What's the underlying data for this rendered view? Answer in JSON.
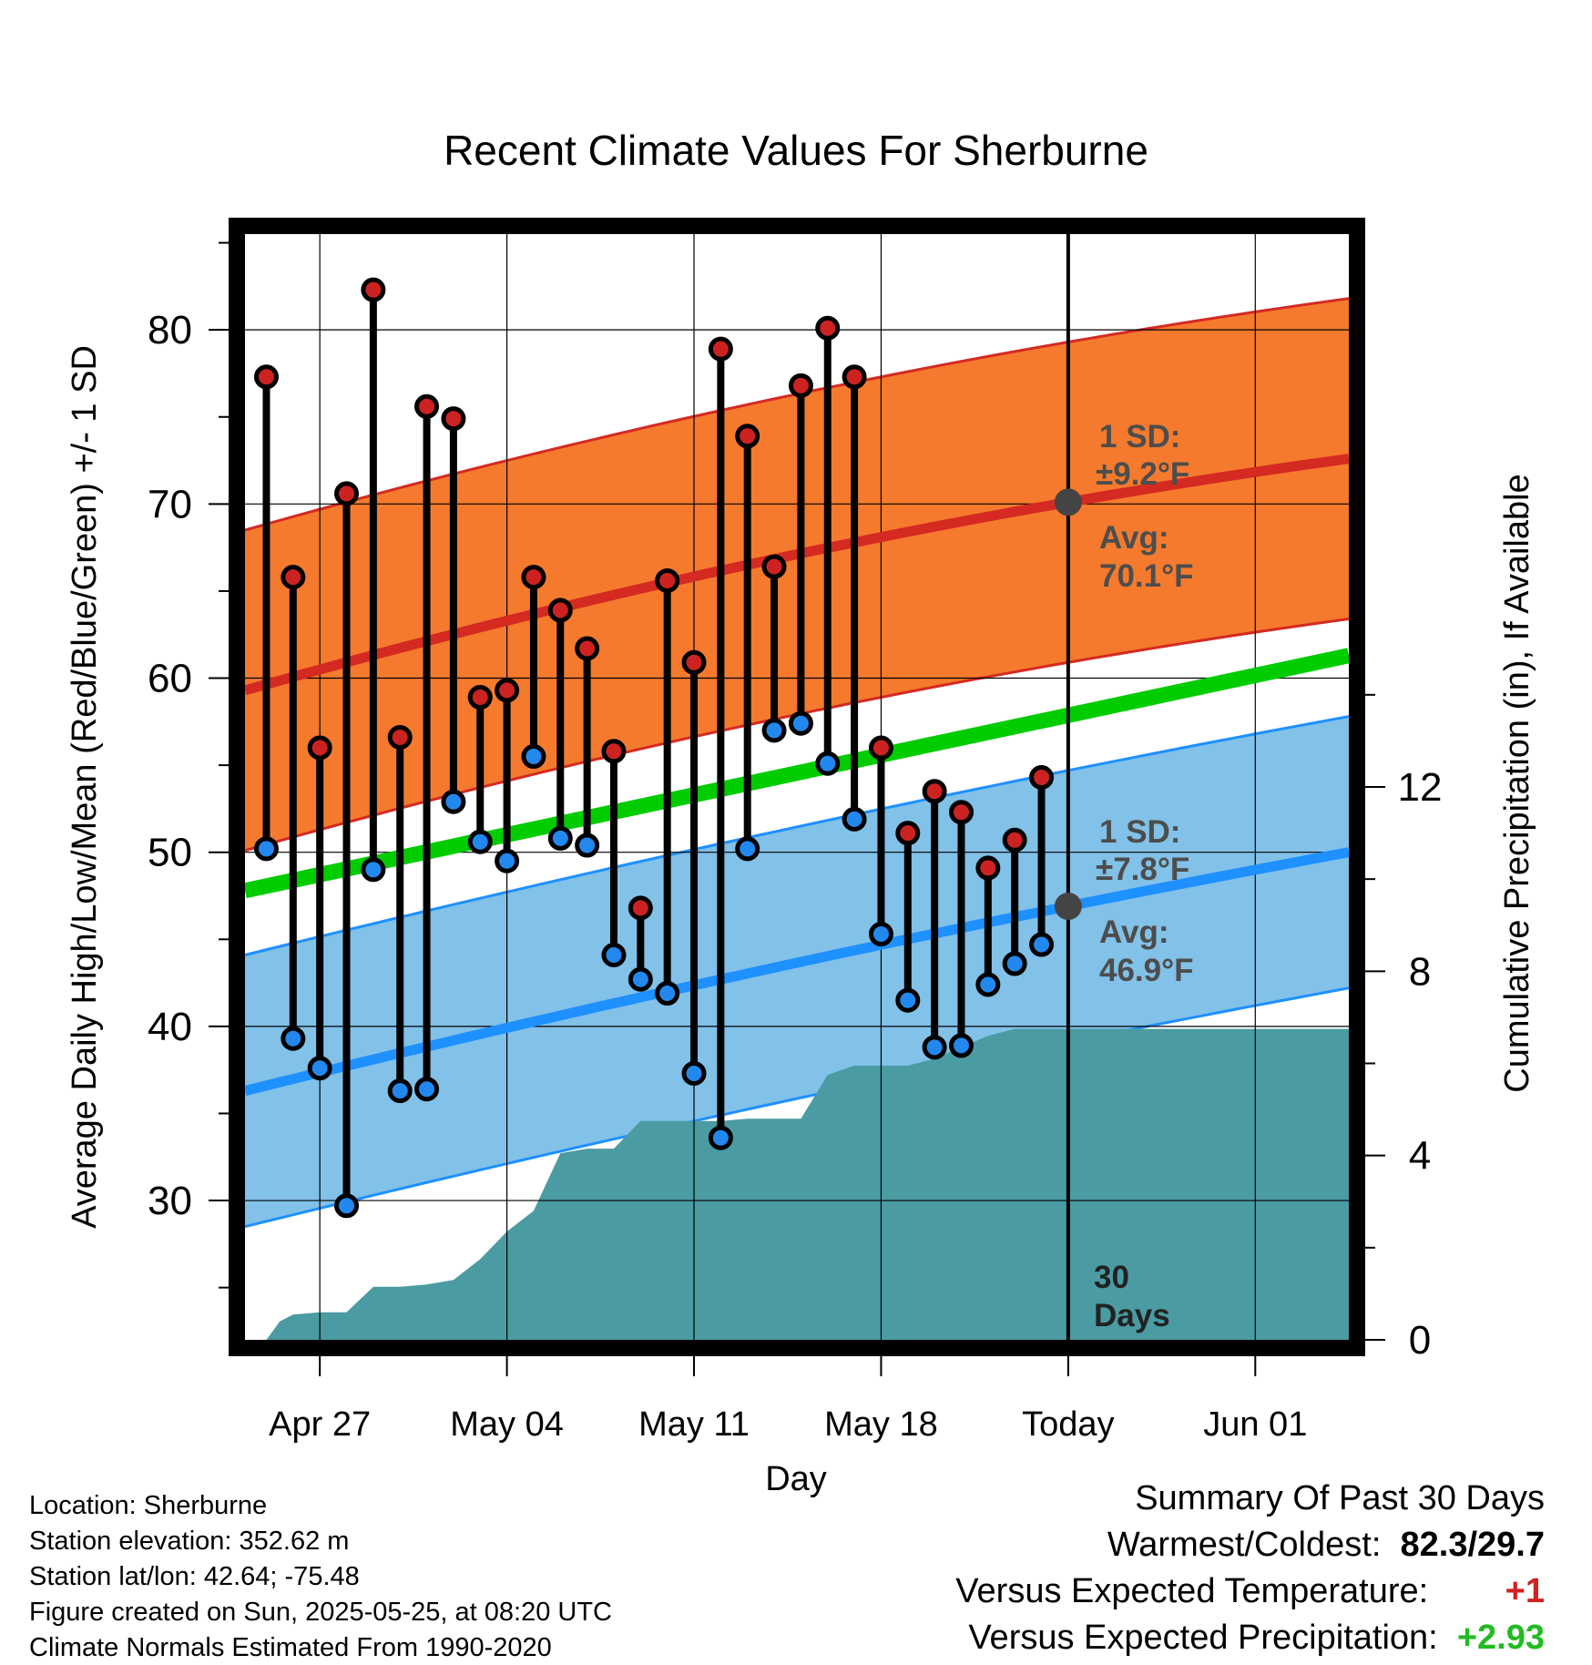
{
  "chart_data": {
    "type": "line",
    "title": "Recent Climate Values For Sherburne",
    "xlabel": "Day",
    "ylabel": "Average Daily High/Low/Mean (Red/Blue/Green) +/- 1 SD",
    "ylabel_right": "Cumulative Precipitation (in), If Available",
    "x_tick_labels": [
      "Apr 27",
      "May 04",
      "May 11",
      "May 18",
      "Today",
      "Jun 01"
    ],
    "x_tick_days": [
      3,
      10,
      17,
      24,
      31,
      38
    ],
    "x_range_days": [
      0.2,
      41.5
    ],
    "y_left_ticks": [
      30,
      40,
      50,
      60,
      70,
      80
    ],
    "y_left_range": [
      22,
      85.5
    ],
    "y_right_ticks": [
      0,
      4,
      8,
      12
    ],
    "y_right_range": [
      0,
      24
    ],
    "days": [
      1,
      2,
      3,
      4,
      5,
      6,
      7,
      8,
      9,
      10,
      11,
      12,
      13,
      14,
      15,
      16,
      17,
      18,
      19,
      20,
      21,
      22,
      23,
      24,
      25,
      26,
      27,
      28,
      29,
      30
    ],
    "series": [
      {
        "name": "High",
        "color": "#cc2222",
        "values": [
          77.3,
          65.8,
          56,
          70.6,
          82.3,
          56.6,
          75.6,
          74.9,
          58.9,
          59.3,
          65.8,
          63.9,
          61.7,
          55.8,
          46.8,
          65.6,
          60.9,
          78.9,
          73.9,
          66.4,
          76.8,
          80.1,
          77.3,
          56,
          51.1,
          53.5,
          52.3,
          49.1,
          50.7,
          54.3
        ]
      },
      {
        "name": "Low",
        "color": "#2288ee",
        "values": [
          50.2,
          39.3,
          37.6,
          29.7,
          49,
          36.3,
          36.4,
          52.9,
          50.6,
          49.5,
          55.5,
          50.8,
          50.4,
          44.1,
          42.7,
          41.9,
          37.3,
          33.6,
          50.2,
          57,
          57.4,
          55.1,
          51.9,
          45.3,
          41.5,
          38.8,
          38.9,
          42.4,
          43.6,
          44.7
        ]
      }
    ],
    "normal_high": {
      "start": 59.3,
      "today": 70.1,
      "end": 72.6,
      "sd": 9.2
    },
    "normal_low": {
      "start": 36.3,
      "today": 46.9,
      "end": 50,
      "sd": 7.8
    },
    "normal_mean": {
      "start": 47.8,
      "end": 61.3
    },
    "precip_cumulative": {
      "days": [
        1,
        1.5,
        2,
        3,
        4,
        5,
        6,
        7,
        8,
        9,
        10,
        11,
        12,
        13,
        14,
        15,
        16,
        17,
        18,
        19,
        20,
        21,
        22,
        23,
        24,
        25,
        26,
        27,
        28,
        29,
        30,
        41.5
      ],
      "values": [
        0,
        0.4,
        0.55,
        0.6,
        0.6,
        1.15,
        1.15,
        1.2,
        1.3,
        1.75,
        2.35,
        2.8,
        4.05,
        4.15,
        4.15,
        4.75,
        4.75,
        4.75,
        4.75,
        4.8,
        4.8,
        4.8,
        5.75,
        5.95,
        5.95,
        5.95,
        6.1,
        6.35,
        6.6,
        6.75,
        6.75,
        6.75
      ]
    },
    "annotations": {
      "high_sd_1": "1 SD:",
      "high_sd_2": "±9.2°F",
      "high_avg_1": "Avg:",
      "high_avg_2": "70.1°F",
      "low_sd_1": "1 SD:",
      "low_sd_2": "±7.8°F",
      "low_avg_1": "Avg:",
      "low_avg_2": "46.9°F",
      "days_1": "30",
      "days_2": "Days"
    },
    "grid": true,
    "colors": {
      "high_band": "#f57a2d",
      "high_line": "#d42a22",
      "low_band": "#82c1e8",
      "low_line": "#1e90ff",
      "mean_line": "#00cc00",
      "precip": "#4a9ba2",
      "normal_dot": "#444444"
    }
  },
  "info": {
    "location": "Location: Sherburne",
    "elevation": "Station elevation: 352.62 m",
    "latlon": "Station lat/lon: 42.64; -75.48",
    "created": "Figure created on Sun, 2025-05-25, at 08:20 UTC",
    "normals": "Climate Normals Estimated From 1990-2020"
  },
  "summary": {
    "title": "Summary Of Past 30 Days",
    "warm_cold_label": "Warmest/Coldest:",
    "warm_cold_value": "82.3/29.7",
    "temp_label": "Versus Expected Temperature:",
    "temp_value": "+1",
    "precip_label": "Versus Expected Precipitation:",
    "precip_value": "+2.93"
  }
}
